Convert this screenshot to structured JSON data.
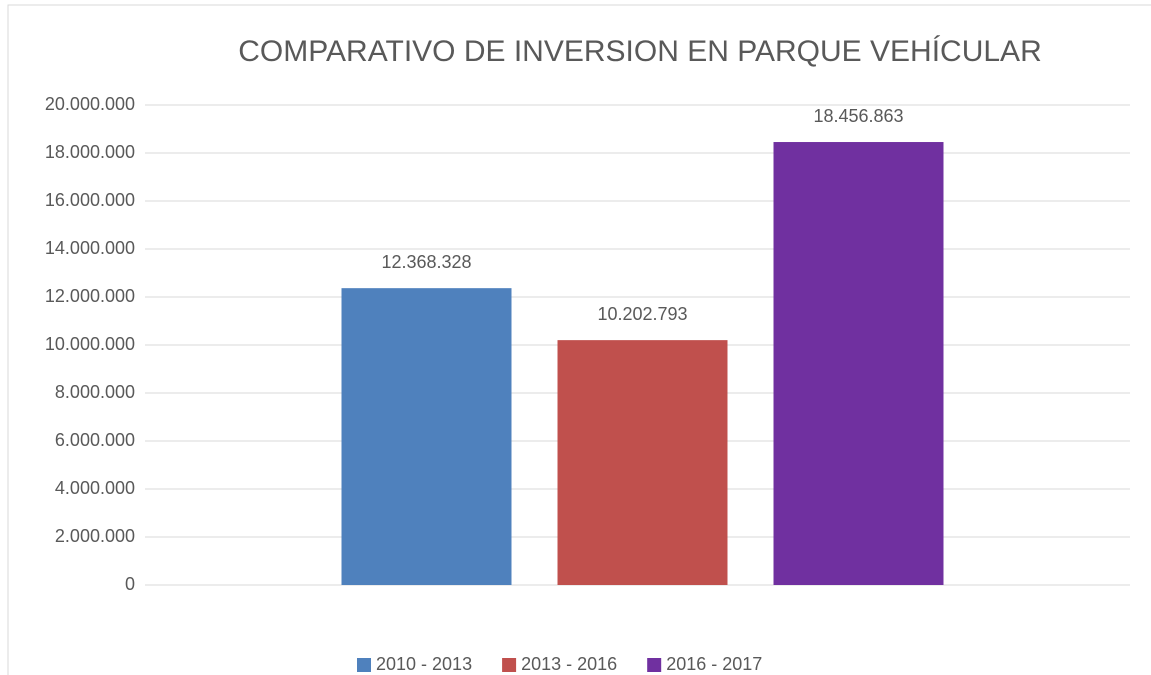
{
  "chart_data": {
    "type": "bar",
    "title": "COMPARATIVO DE INVERSION EN PARQUE VEHÍCULAR",
    "categories": [
      null
    ],
    "series": [
      {
        "name": "2010 - 2013",
        "color": "#4f81bd",
        "values": [
          12368328
        ],
        "value_labels": [
          "12.368.328"
        ]
      },
      {
        "name": "2013 - 2016",
        "color": "#c0504d",
        "values": [
          10202793
        ],
        "value_labels": [
          "10.202.793"
        ]
      },
      {
        "name": "2016 - 2017",
        "color": "#7030a0",
        "values": [
          18456863
        ],
        "value_labels": [
          "18.456.863"
        ]
      }
    ],
    "ylim": [
      0,
      20000000
    ],
    "yticks": [
      0,
      {
        "value": 2000000,
        "label": "2.000.000"
      },
      {
        "value": 4000000,
        "label": "4.000.000"
      },
      {
        "value": 6000000,
        "label": "6.000.000"
      },
      {
        "value": 8000000,
        "label": "8.000.000"
      },
      {
        "value": 10000000,
        "label": "10.000.000"
      },
      {
        "value": 12000000,
        "label": "12.000.000"
      },
      {
        "value": 14000000,
        "label": "14.000.000"
      },
      {
        "value": 16000000,
        "label": "16.000.000"
      },
      {
        "value": 18000000,
        "label": "18.000.000"
      },
      {
        "value": 20000000,
        "label": "20.000.000"
      }
    ],
    "grid": true,
    "legend": "bottom"
  }
}
